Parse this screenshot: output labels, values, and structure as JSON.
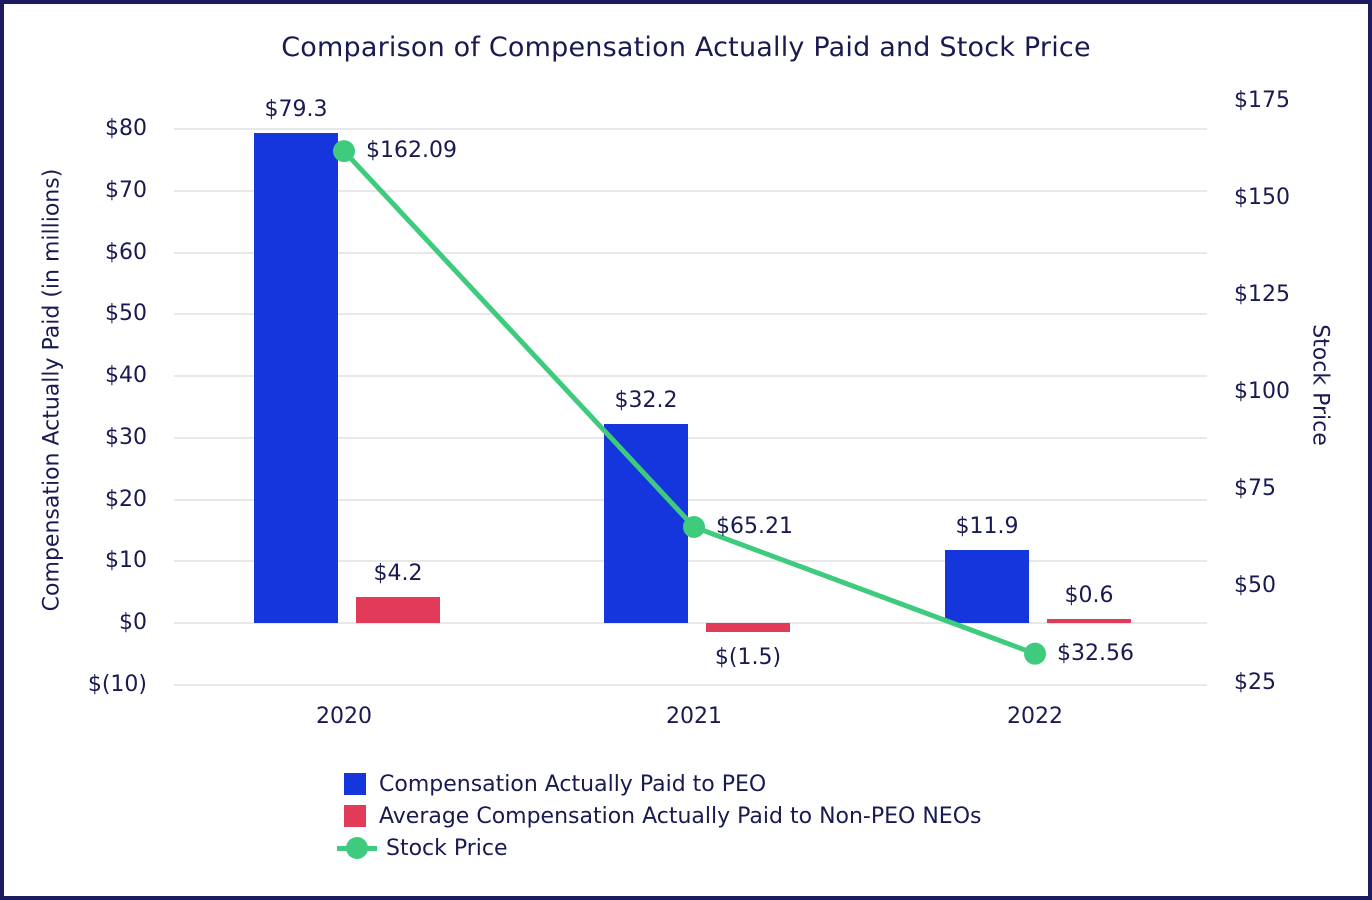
{
  "chart_data": {
    "type": "combo",
    "title": "Comparison of Compensation Actually Paid and Stock Price",
    "categories": [
      "2020",
      "2021",
      "2022"
    ],
    "series": [
      {
        "name": "Compensation Actually Paid to PEO",
        "kind": "bar",
        "axis": "left",
        "color": "#1535dd",
        "values": [
          79.3,
          32.2,
          11.9
        ],
        "point_labels": [
          "$79.3",
          "$32.2",
          "$11.9"
        ]
      },
      {
        "name": "Average Compensation Actually Paid to Non-PEO NEOs",
        "kind": "bar",
        "axis": "left",
        "color": "#e23a59",
        "values": [
          4.2,
          -1.5,
          0.6
        ],
        "point_labels": [
          "$4.2",
          "$(1.5)",
          "$0.6"
        ]
      },
      {
        "name": "Stock Price",
        "kind": "line",
        "axis": "right",
        "color": "#3ecb7e",
        "values": [
          162.09,
          65.21,
          32.56
        ],
        "point_labels": [
          "$162.09",
          "$65.21",
          "$32.56"
        ]
      }
    ],
    "left_axis": {
      "title": "Compensation Actually Paid (in millions)",
      "tick_values": [
        80,
        70,
        60,
        50,
        40,
        30,
        20,
        10,
        0,
        -10
      ],
      "tick_labels": [
        "$80",
        "$70",
        "$60",
        "$50",
        "$40",
        "$30",
        "$20",
        "$10",
        "$0",
        "$(10)"
      ],
      "range": [
        -10,
        80
      ]
    },
    "right_axis": {
      "title": "Stock Price",
      "tick_values": [
        175,
        150,
        125,
        100,
        75,
        50,
        25
      ],
      "tick_labels": [
        "$175",
        "$150",
        "$125",
        "$100",
        "$75",
        "$50",
        "$25"
      ],
      "range": [
        25,
        175
      ]
    },
    "legend_position": "bottom-left",
    "grid": true
  },
  "colors": {
    "text": "#1a1a52",
    "gridline": "#e8e8e8",
    "frame_border": "#1b1b5e",
    "background": "#ffffff"
  }
}
